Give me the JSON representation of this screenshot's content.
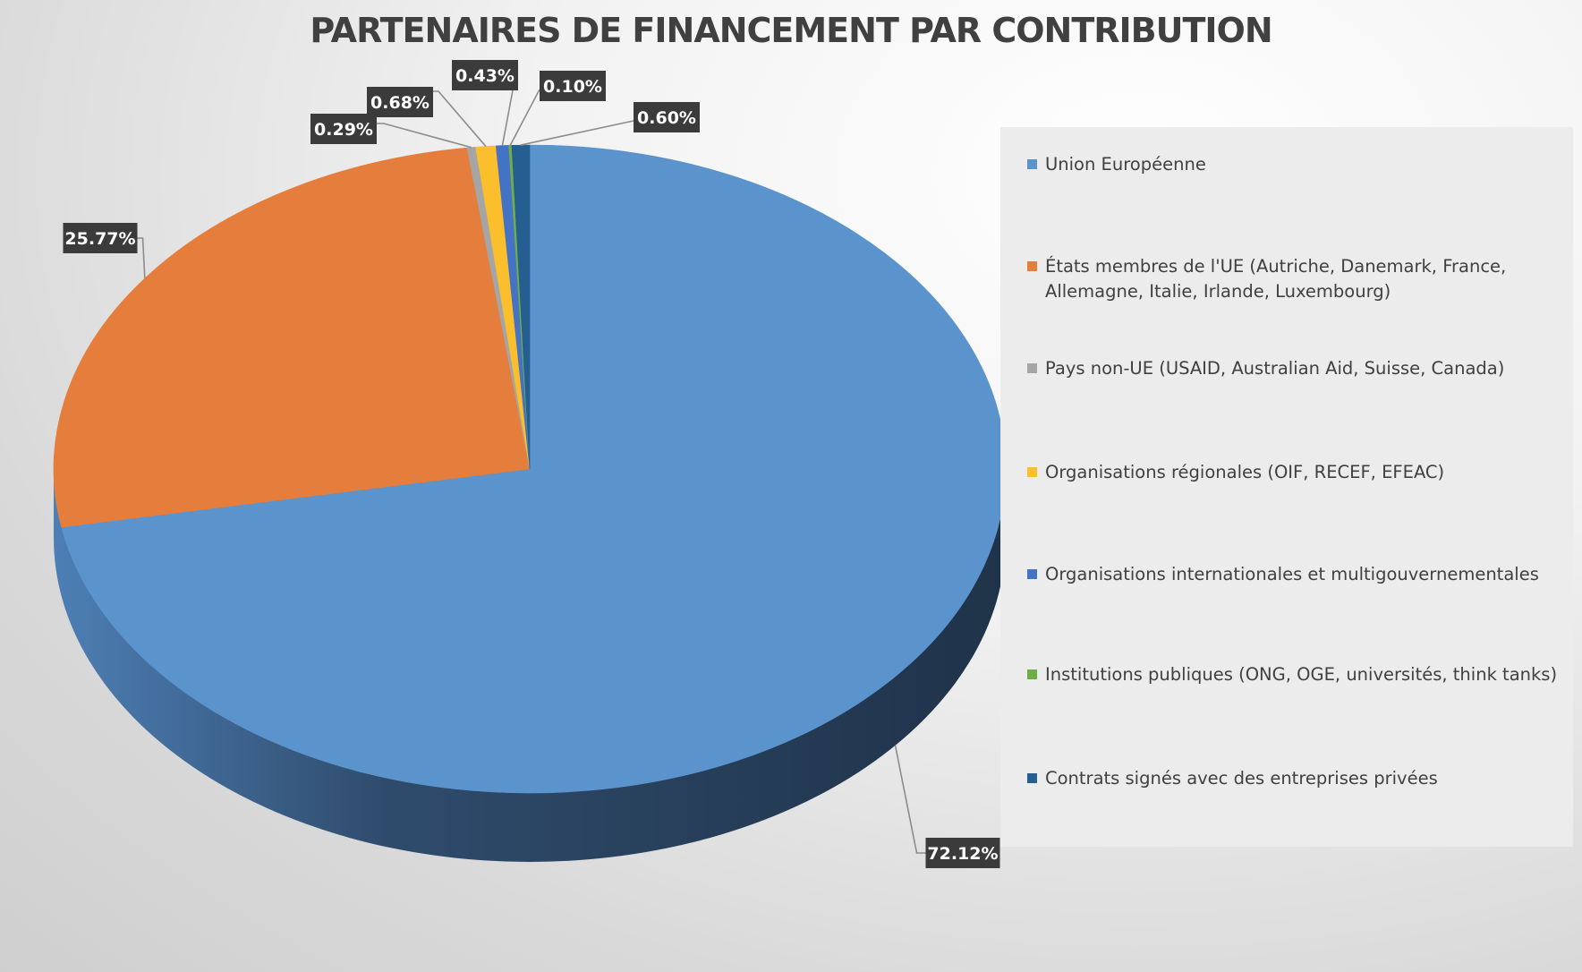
{
  "colors": {
    "background": "#d9d9d9",
    "legend_background": "#ececec",
    "label_background": "#3b3b3b",
    "title": "#404040"
  },
  "chart_data": {
    "type": "pie",
    "style": "3d",
    "title": "PARTENAIRES DE FINANCEMENT PAR CONTRIBUTION",
    "legend_position": "right",
    "label_format": "percent",
    "slices": [
      {
        "label": "Union Européenne",
        "value": 72.12,
        "display": "72.12%",
        "color": "#5b93cc"
      },
      {
        "label": "États membres de l'UE (Autriche, Danemark, France, Allemagne, Italie, Irlande, Luxembourg)",
        "value": 25.77,
        "display": "25.77%",
        "color": "#e57d3c"
      },
      {
        "label": "Pays non-UE (USAID, Australian Aid, Suisse, Canada)",
        "value": 0.29,
        "display": "0.29%",
        "color": "#a5a5a5"
      },
      {
        "label": "Organisations régionales (OIF, RECEF, EFEAC)",
        "value": 0.68,
        "display": "0.68%",
        "color": "#fbbe2c"
      },
      {
        "label": "Organisations internationales et multigouvernementales",
        "value": 0.43,
        "display": "0.43%",
        "color": "#4472c4"
      },
      {
        "label": "Institutions publiques (ONG, OGE, universités, think tanks)",
        "value": 0.1,
        "display": "0.10%",
        "color": "#70ad47"
      },
      {
        "label": "Contrats signés avec des entreprises privées",
        "value": 0.6,
        "display": "0.60%",
        "color": "#255e91"
      }
    ]
  }
}
